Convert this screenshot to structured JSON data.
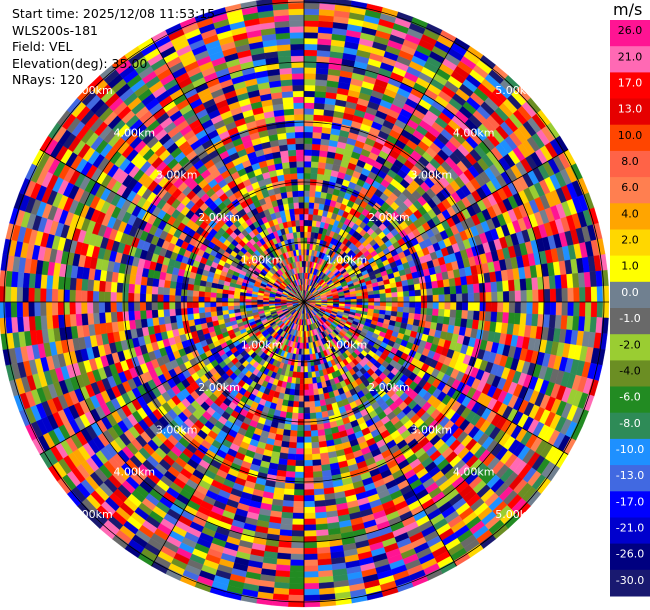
{
  "header": {
    "start_time": "Start time: 2025/12/08 11:53:15",
    "instrument": "WLS200s-181",
    "field": "Field: VEL",
    "elevation": "Elevation(deg): 35.00",
    "nrays": "NRays: 120"
  },
  "colorbar": {
    "unit": "m/s",
    "labels": [
      "26.0",
      "21.0",
      "17.0",
      "13.0",
      "10.0",
      "8.0",
      "6.0",
      "4.0",
      "2.0",
      "1.0",
      "0.0",
      "-1.0",
      "-2.0",
      "-4.0",
      "-6.0",
      "-8.0",
      "-10.0",
      "-13.0",
      "-17.0",
      "-21.0",
      "-26.0",
      "-30.0"
    ],
    "colors": [
      "#ff1493",
      "#ff69b4",
      "#ff0000",
      "#e60000",
      "#ff4500",
      "#ff6347",
      "#ff7f50",
      "#ffa500",
      "#ffd700",
      "#ffff00",
      "#708090",
      "#696969",
      "#9acd32",
      "#6b8e23",
      "#228b22",
      "#2e8b57",
      "#1e90ff",
      "#4169e1",
      "#0000ff",
      "#0000cd",
      "#000080",
      "#191970"
    ]
  },
  "chart_data": {
    "type": "ppi",
    "field": "VEL",
    "units": "m/s",
    "elevation_deg": 35.0,
    "n_rays": 120,
    "value_range": [
      -30.0,
      30.0
    ],
    "range_ring_labels": [
      "1.00km",
      "2.00km",
      "3.00km",
      "4.00km",
      "5.00km"
    ]
  }
}
